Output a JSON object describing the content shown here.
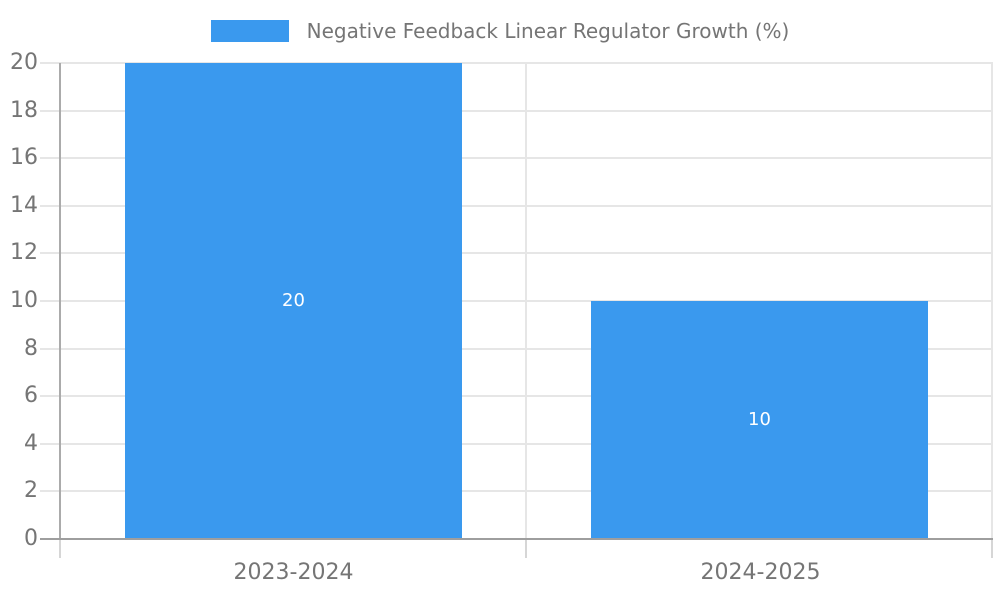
{
  "legend": {
    "label": "Negative Feedback Linear Regulator Growth (%)"
  },
  "chart_data": {
    "type": "bar",
    "title": "Negative Feedback Linear Regulator Growth (%)",
    "categories": [
      "2023-2024",
      "2024-2025"
    ],
    "series": [
      {
        "name": "Negative Feedback Linear Regulator Growth (%)",
        "values": [
          20,
          10
        ]
      }
    ],
    "value_labels": [
      "20",
      "10"
    ],
    "xlabel": "",
    "ylabel": "",
    "ylim": [
      0,
      20
    ],
    "ytick_step": 2,
    "ytick_labels": [
      "0",
      "2",
      "4",
      "6",
      "8",
      "10",
      "12",
      "14",
      "16",
      "18",
      "20"
    ],
    "grid": true,
    "legend_position": "top-center",
    "colors": {
      "bar": "#3a99ee",
      "value_label": "#ffffff",
      "axis_text": "#757575",
      "gridline": "#e6e6e6",
      "tick": "#d6d6d6",
      "axis_line_y": "#ababab",
      "axis_line_x": "#9e9e9e"
    }
  }
}
